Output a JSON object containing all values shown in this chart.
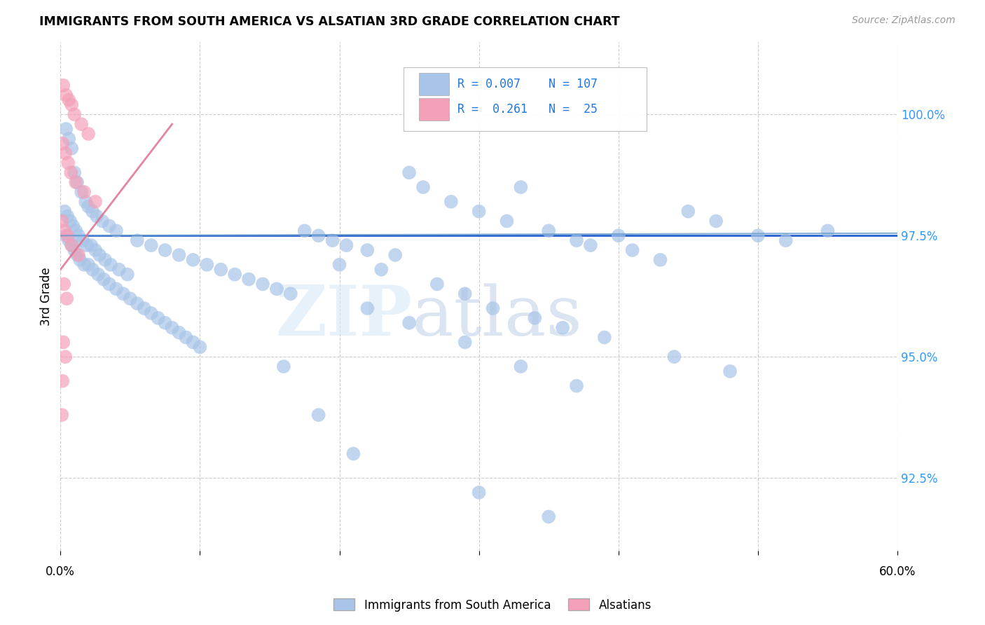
{
  "title": "IMMIGRANTS FROM SOUTH AMERICA VS ALSATIAN 3RD GRADE CORRELATION CHART",
  "source": "Source: ZipAtlas.com",
  "ylabel": "3rd Grade",
  "xlim": [
    0.0,
    60.0
  ],
  "ylim": [
    91.0,
    101.5
  ],
  "blue_R": "0.007",
  "blue_N": "107",
  "pink_R": "0.261",
  "pink_N": "25",
  "hline_y": 97.5,
  "hline_color": "#1a5acd",
  "legend_label_blue": "Immigrants from South America",
  "legend_label_pink": "Alsatians",
  "watermark_zip": "ZIP",
  "watermark_atlas": "atlas",
  "blue_color": "#a8c4e8",
  "pink_color": "#f4a0b8",
  "blue_scatter": [
    [
      0.4,
      99.7
    ],
    [
      0.6,
      99.5
    ],
    [
      0.8,
      99.3
    ],
    [
      1.0,
      98.8
    ],
    [
      1.2,
      98.6
    ],
    [
      1.5,
      98.4
    ],
    [
      1.8,
      98.2
    ],
    [
      2.0,
      98.1
    ],
    [
      2.3,
      98.0
    ],
    [
      2.6,
      97.9
    ],
    [
      3.0,
      97.8
    ],
    [
      3.5,
      97.7
    ],
    [
      4.0,
      97.6
    ],
    [
      0.3,
      98.0
    ],
    [
      0.5,
      97.9
    ],
    [
      0.7,
      97.8
    ],
    [
      0.9,
      97.7
    ],
    [
      1.1,
      97.6
    ],
    [
      1.3,
      97.5
    ],
    [
      1.6,
      97.4
    ],
    [
      1.9,
      97.3
    ],
    [
      2.2,
      97.3
    ],
    [
      2.5,
      97.2
    ],
    [
      2.8,
      97.1
    ],
    [
      3.2,
      97.0
    ],
    [
      3.6,
      96.9
    ],
    [
      4.2,
      96.8
    ],
    [
      4.8,
      96.7
    ],
    [
      0.4,
      97.5
    ],
    [
      0.6,
      97.4
    ],
    [
      0.8,
      97.3
    ],
    [
      1.0,
      97.2
    ],
    [
      1.2,
      97.1
    ],
    [
      1.4,
      97.0
    ],
    [
      1.7,
      96.9
    ],
    [
      2.0,
      96.9
    ],
    [
      2.3,
      96.8
    ],
    [
      2.7,
      96.7
    ],
    [
      3.1,
      96.6
    ],
    [
      3.5,
      96.5
    ],
    [
      4.0,
      96.4
    ],
    [
      4.5,
      96.3
    ],
    [
      5.0,
      96.2
    ],
    [
      5.5,
      96.1
    ],
    [
      6.0,
      96.0
    ],
    [
      6.5,
      95.9
    ],
    [
      7.0,
      95.8
    ],
    [
      7.5,
      95.7
    ],
    [
      8.0,
      95.6
    ],
    [
      8.5,
      95.5
    ],
    [
      9.0,
      95.4
    ],
    [
      9.5,
      95.3
    ],
    [
      10.0,
      95.2
    ],
    [
      5.5,
      97.4
    ],
    [
      6.5,
      97.3
    ],
    [
      7.5,
      97.2
    ],
    [
      8.5,
      97.1
    ],
    [
      9.5,
      97.0
    ],
    [
      10.5,
      96.9
    ],
    [
      11.5,
      96.8
    ],
    [
      12.5,
      96.7
    ],
    [
      13.5,
      96.6
    ],
    [
      14.5,
      96.5
    ],
    [
      15.5,
      96.4
    ],
    [
      16.5,
      96.3
    ],
    [
      17.5,
      97.6
    ],
    [
      18.5,
      97.5
    ],
    [
      19.5,
      97.4
    ],
    [
      20.5,
      97.3
    ],
    [
      22.0,
      97.2
    ],
    [
      24.0,
      97.1
    ],
    [
      25.0,
      98.8
    ],
    [
      26.0,
      98.5
    ],
    [
      28.0,
      98.2
    ],
    [
      30.0,
      98.0
    ],
    [
      32.0,
      97.8
    ],
    [
      33.0,
      98.5
    ],
    [
      35.0,
      97.6
    ],
    [
      37.0,
      97.4
    ],
    [
      38.0,
      97.3
    ],
    [
      40.0,
      97.5
    ],
    [
      41.0,
      97.2
    ],
    [
      43.0,
      97.0
    ],
    [
      45.0,
      98.0
    ],
    [
      47.0,
      97.8
    ],
    [
      50.0,
      97.5
    ],
    [
      52.0,
      97.4
    ],
    [
      55.0,
      97.6
    ],
    [
      20.0,
      96.9
    ],
    [
      23.0,
      96.8
    ],
    [
      27.0,
      96.5
    ],
    [
      29.0,
      96.3
    ],
    [
      31.0,
      96.0
    ],
    [
      34.0,
      95.8
    ],
    [
      36.0,
      95.6
    ],
    [
      39.0,
      95.4
    ],
    [
      44.0,
      95.0
    ],
    [
      48.0,
      94.7
    ],
    [
      22.0,
      96.0
    ],
    [
      25.0,
      95.7
    ],
    [
      29.0,
      95.3
    ],
    [
      33.0,
      94.8
    ],
    [
      37.0,
      94.4
    ],
    [
      30.0,
      92.2
    ],
    [
      35.0,
      91.7
    ],
    [
      16.0,
      94.8
    ],
    [
      21.0,
      93.0
    ],
    [
      18.5,
      93.8
    ]
  ],
  "pink_scatter": [
    [
      0.2,
      100.6
    ],
    [
      0.4,
      100.4
    ],
    [
      0.6,
      100.3
    ],
    [
      0.8,
      100.2
    ],
    [
      1.0,
      100.0
    ],
    [
      1.5,
      99.8
    ],
    [
      2.0,
      99.6
    ],
    [
      0.15,
      99.4
    ],
    [
      0.35,
      99.2
    ],
    [
      0.55,
      99.0
    ],
    [
      0.75,
      98.8
    ],
    [
      1.1,
      98.6
    ],
    [
      1.7,
      98.4
    ],
    [
      2.5,
      98.2
    ],
    [
      0.1,
      97.8
    ],
    [
      0.3,
      97.6
    ],
    [
      0.5,
      97.5
    ],
    [
      0.8,
      97.3
    ],
    [
      1.3,
      97.1
    ],
    [
      0.25,
      96.5
    ],
    [
      0.45,
      96.2
    ],
    [
      0.2,
      95.3
    ],
    [
      0.35,
      95.0
    ],
    [
      0.15,
      94.5
    ],
    [
      0.1,
      93.8
    ]
  ],
  "blue_trendline_x": [
    0.0,
    60.0
  ],
  "blue_trendline_y": [
    97.5,
    97.55
  ],
  "pink_trendline_x": [
    0.0,
    8.0
  ],
  "pink_trendline_y": [
    96.8,
    99.8
  ]
}
